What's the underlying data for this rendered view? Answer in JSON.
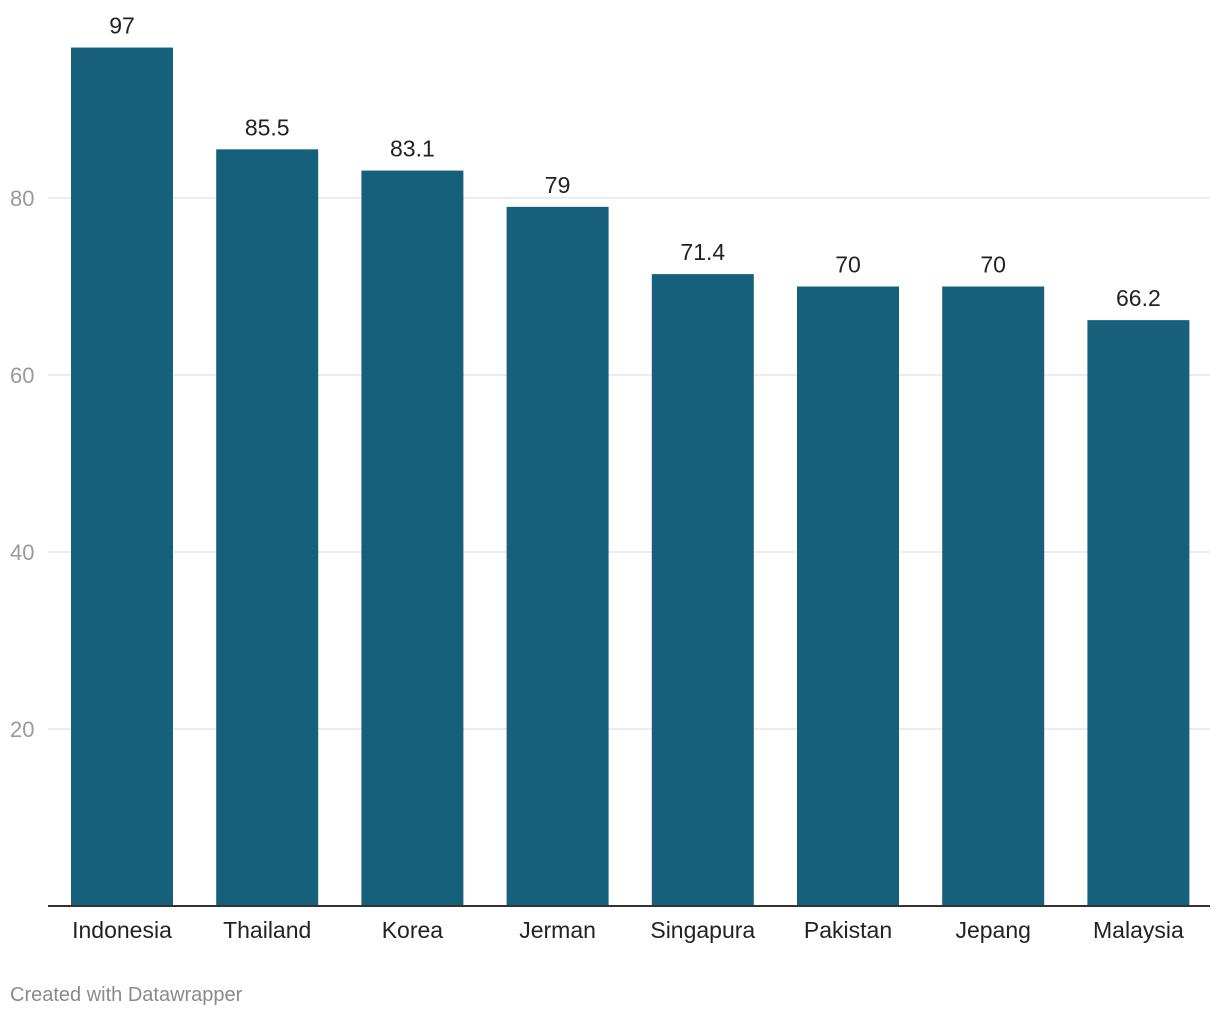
{
  "chart_data": {
    "type": "bar",
    "categories": [
      "Indonesia",
      "Thailand",
      "Korea",
      "Jerman",
      "Singapura",
      "Pakistan",
      "Jepang",
      "Malaysia"
    ],
    "values": [
      97,
      85.5,
      83.1,
      79,
      71.4,
      70,
      70,
      66.2
    ],
    "value_labels": [
      "97",
      "85.5",
      "83.1",
      "79",
      "71.4",
      "70",
      "70",
      "66.2"
    ],
    "ylim": [
      0,
      100
    ],
    "yticks": [
      20,
      40,
      60,
      80
    ],
    "grid": true,
    "bar_color": "#17607b",
    "title": "",
    "xlabel": "",
    "ylabel": ""
  },
  "footer": {
    "credit": "Created with Datawrapper"
  }
}
